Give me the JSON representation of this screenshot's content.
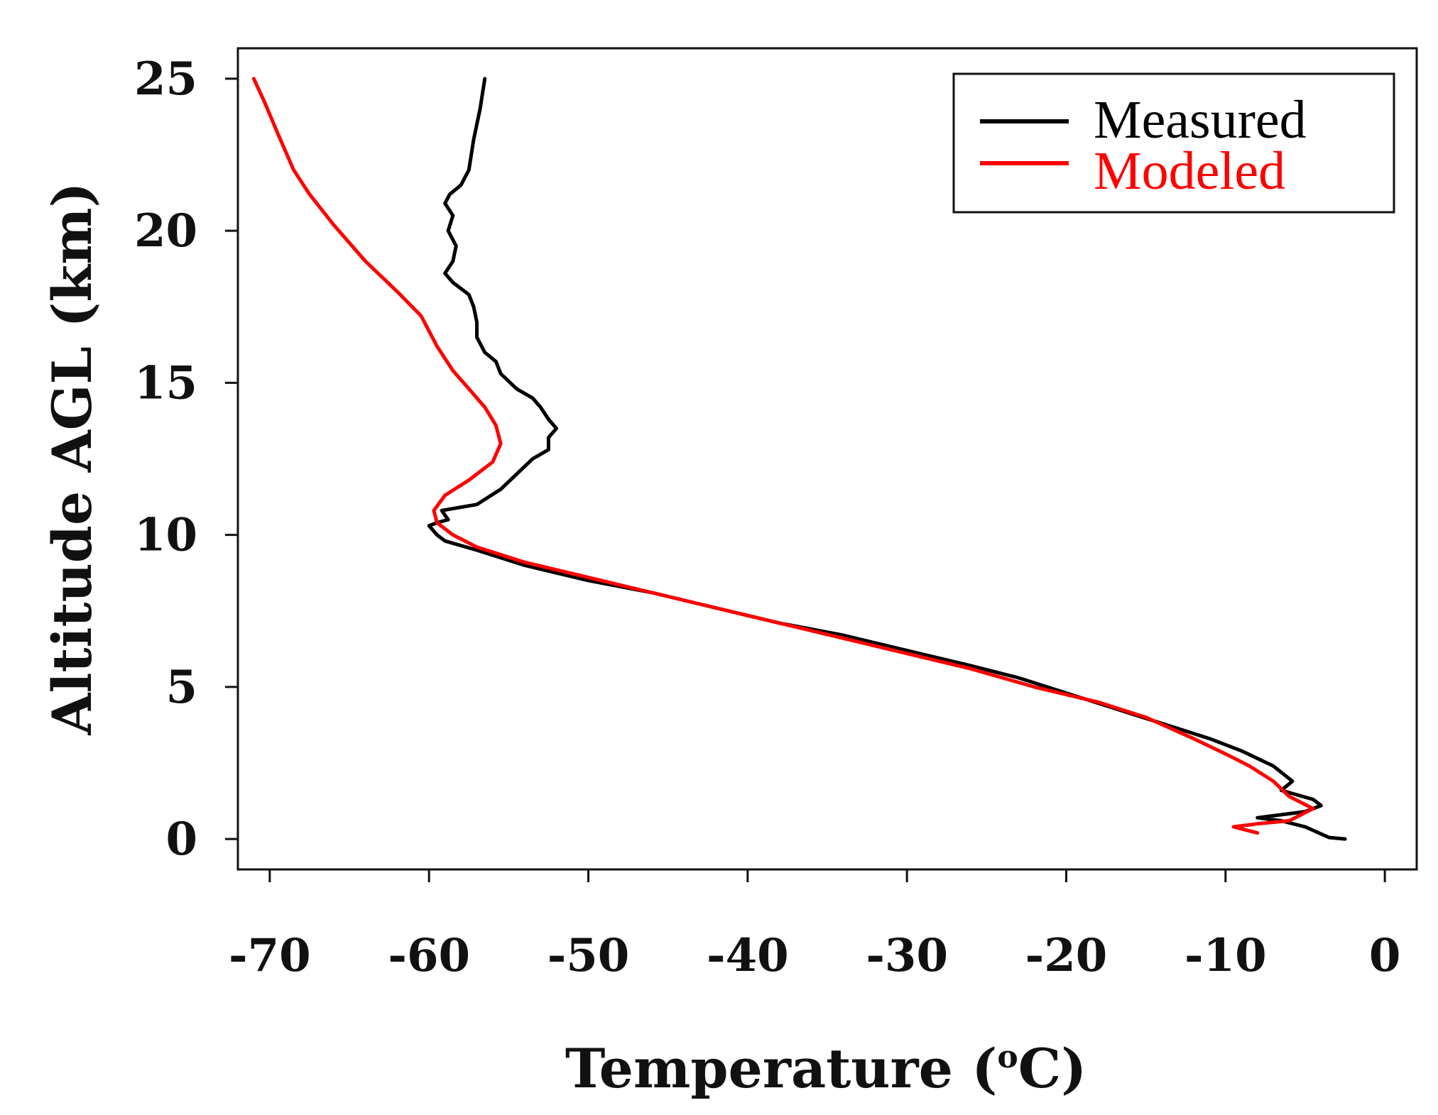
{
  "chart_data": {
    "type": "line",
    "title": "",
    "xlabel_main": "Temperature (",
    "xlabel_sup": "o",
    "xlabel_end": "C)",
    "ylabel": "Altitude AGL (km)",
    "xlim": [
      -72,
      2
    ],
    "ylim": [
      -1,
      26
    ],
    "xticks": [
      -70,
      -60,
      -50,
      -40,
      -30,
      -20,
      -10,
      0
    ],
    "xtick_labels": [
      "-70",
      "-60",
      "-50",
      "-40",
      "-30",
      "-20",
      "-10",
      "0"
    ],
    "yticks": [
      0,
      5,
      10,
      15,
      20,
      25
    ],
    "ytick_labels": [
      "0",
      "5",
      "10",
      "15",
      "20",
      "25"
    ],
    "legend_position": "top-right",
    "series": [
      {
        "name": "Measured",
        "color": "#000000",
        "points": [
          [
            -2.5,
            0.0
          ],
          [
            -3.5,
            0.05
          ],
          [
            -5,
            0.4
          ],
          [
            -6.5,
            0.6
          ],
          [
            -8,
            0.7
          ],
          [
            -5,
            0.9
          ],
          [
            -4,
            1.1
          ],
          [
            -4.5,
            1.3
          ],
          [
            -6.5,
            1.6
          ],
          [
            -5.8,
            1.9
          ],
          [
            -7,
            2.4
          ],
          [
            -9,
            2.9
          ],
          [
            -11,
            3.3
          ],
          [
            -14,
            3.8
          ],
          [
            -17,
            4.3
          ],
          [
            -20,
            4.8
          ],
          [
            -23,
            5.3
          ],
          [
            -26,
            5.7
          ],
          [
            -30,
            6.2
          ],
          [
            -34,
            6.7
          ],
          [
            -38,
            7.1
          ],
          [
            -42,
            7.6
          ],
          [
            -46,
            8.1
          ],
          [
            -50,
            8.5
          ],
          [
            -54,
            9.0
          ],
          [
            -57,
            9.5
          ],
          [
            -59,
            9.8
          ],
          [
            -59.5,
            10.0
          ],
          [
            -60,
            10.3
          ],
          [
            -59.5,
            10.4
          ],
          [
            -58.8,
            10.5
          ],
          [
            -59.2,
            10.8
          ],
          [
            -57,
            11.0
          ],
          [
            -55.5,
            11.5
          ],
          [
            -54.5,
            12.0
          ],
          [
            -53.5,
            12.5
          ],
          [
            -52.5,
            12.8
          ],
          [
            -52.5,
            13.2
          ],
          [
            -52,
            13.5
          ],
          [
            -52.5,
            13.8
          ],
          [
            -53,
            14.2
          ],
          [
            -53.5,
            14.5
          ],
          [
            -54.5,
            14.8
          ],
          [
            -55.5,
            15.3
          ],
          [
            -55.8,
            15.7
          ],
          [
            -56.5,
            16.0
          ],
          [
            -57,
            16.5
          ],
          [
            -57,
            17.0
          ],
          [
            -57.2,
            17.5
          ],
          [
            -57.5,
            17.9
          ],
          [
            -58.5,
            18.3
          ],
          [
            -59,
            18.6
          ],
          [
            -58.5,
            19.0
          ],
          [
            -58.3,
            19.5
          ],
          [
            -58.8,
            20.0
          ],
          [
            -58.5,
            20.5
          ],
          [
            -59,
            20.9
          ],
          [
            -58.7,
            21.2
          ],
          [
            -58,
            21.5
          ],
          [
            -57.5,
            22.0
          ],
          [
            -57.2,
            23.0
          ],
          [
            -56.8,
            24.0
          ],
          [
            -56.5,
            25.0
          ]
        ]
      },
      {
        "name": "Modeled",
        "color": "#ff0000",
        "points": [
          [
            -8,
            0.2
          ],
          [
            -9.5,
            0.4
          ],
          [
            -8,
            0.5
          ],
          [
            -6,
            0.6
          ],
          [
            -4.5,
            1.0
          ],
          [
            -6,
            1.4
          ],
          [
            -7,
            1.9
          ],
          [
            -8.5,
            2.4
          ],
          [
            -10,
            2.8
          ],
          [
            -12,
            3.3
          ],
          [
            -15,
            4.0
          ],
          [
            -18,
            4.5
          ],
          [
            -22,
            5.0
          ],
          [
            -26,
            5.6
          ],
          [
            -30,
            6.1
          ],
          [
            -34,
            6.6
          ],
          [
            -38,
            7.1
          ],
          [
            -42,
            7.6
          ],
          [
            -46,
            8.1
          ],
          [
            -50,
            8.6
          ],
          [
            -54,
            9.1
          ],
          [
            -57,
            9.6
          ],
          [
            -58.5,
            10.0
          ],
          [
            -59.5,
            10.4
          ],
          [
            -59.7,
            10.8
          ],
          [
            -59,
            11.3
          ],
          [
            -57.5,
            11.8
          ],
          [
            -56,
            12.4
          ],
          [
            -55.5,
            13.0
          ],
          [
            -55.8,
            13.6
          ],
          [
            -56.5,
            14.2
          ],
          [
            -57.5,
            14.8
          ],
          [
            -58.5,
            15.4
          ],
          [
            -59.5,
            16.2
          ],
          [
            -60.5,
            17.2
          ],
          [
            -62,
            18.0
          ],
          [
            -64,
            19.0
          ],
          [
            -66,
            20.2
          ],
          [
            -67.5,
            21.2
          ],
          [
            -68.5,
            22.0
          ],
          [
            -69.5,
            23.2
          ],
          [
            -70.3,
            24.2
          ],
          [
            -71,
            25.0
          ]
        ]
      }
    ]
  }
}
